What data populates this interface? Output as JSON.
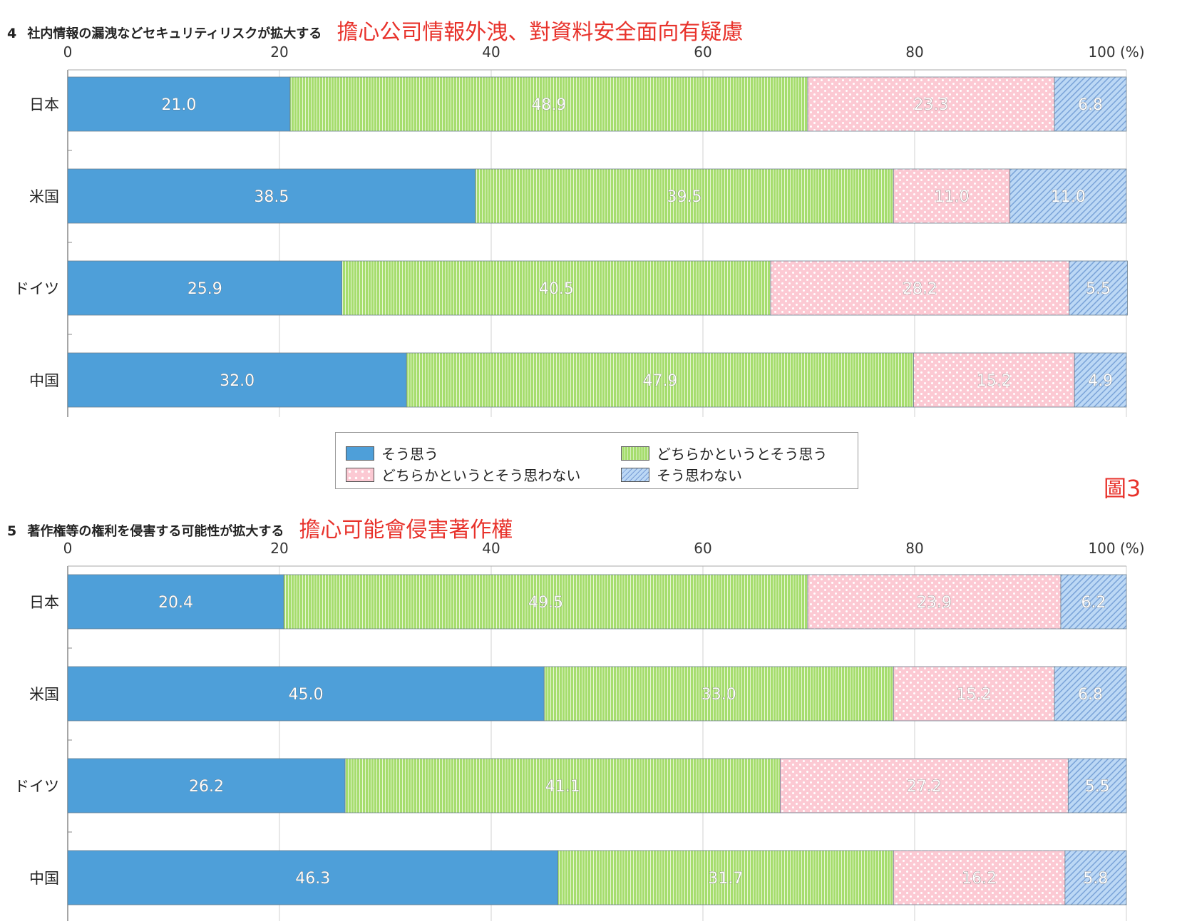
{
  "legend": {
    "items": [
      "そう思う",
      "どちらかというとそう思う",
      "どちらかというとそう思わない",
      "そう思わない"
    ]
  },
  "colors": {
    "c0": "#4e9fd9",
    "c1": "#a6dd6e",
    "c2": "#fcc9d3",
    "c3": "#bcd8f5",
    "annotation": "#e8322b"
  },
  "figure_label": "圖3",
  "chart_data": [
    {
      "type": "bar",
      "orientation": "horizontal",
      "stacked": true,
      "title_number": "4",
      "title": "社内情報の漏洩などセキュリティリスクが拡大する",
      "annotation": "擔心公司情報外洩、對資料安全面向有疑慮",
      "categories": [
        "日本",
        "米国",
        "ドイツ",
        "中国"
      ],
      "series": [
        {
          "name": "そう思う",
          "values": [
            21.0,
            38.5,
            25.9,
            32.0
          ]
        },
        {
          "name": "どちらかというとそう思う",
          "values": [
            48.9,
            39.5,
            40.5,
            47.9
          ]
        },
        {
          "name": "どちらかというとそう思わない",
          "values": [
            23.3,
            11.0,
            28.2,
            15.2
          ]
        },
        {
          "name": "そう思わない",
          "values": [
            6.8,
            11.0,
            5.5,
            4.9
          ]
        }
      ],
      "xlim": [
        0,
        100
      ],
      "xticks": [
        "0",
        "20",
        "40",
        "60",
        "80",
        "100 (%)"
      ],
      "grid": true
    },
    {
      "type": "bar",
      "orientation": "horizontal",
      "stacked": true,
      "title_number": "5",
      "title": "著作権等の権利を侵害する可能性が拡大する",
      "annotation": "擔心可能會侵害著作權",
      "categories": [
        "日本",
        "米国",
        "ドイツ",
        "中国"
      ],
      "series": [
        {
          "name": "そう思う",
          "values": [
            20.4,
            45.0,
            26.2,
            46.3
          ]
        },
        {
          "name": "どちらかというとそう思う",
          "values": [
            49.5,
            33.0,
            41.1,
            31.7
          ]
        },
        {
          "name": "どちらかというとそう思わない",
          "values": [
            23.9,
            15.2,
            27.2,
            16.2
          ]
        },
        {
          "name": "そう思わない",
          "values": [
            6.2,
            6.8,
            5.5,
            5.8
          ]
        }
      ],
      "xlim": [
        0,
        100
      ],
      "xticks": [
        "0",
        "20",
        "40",
        "60",
        "80",
        "100 (%)"
      ],
      "grid": true
    }
  ]
}
